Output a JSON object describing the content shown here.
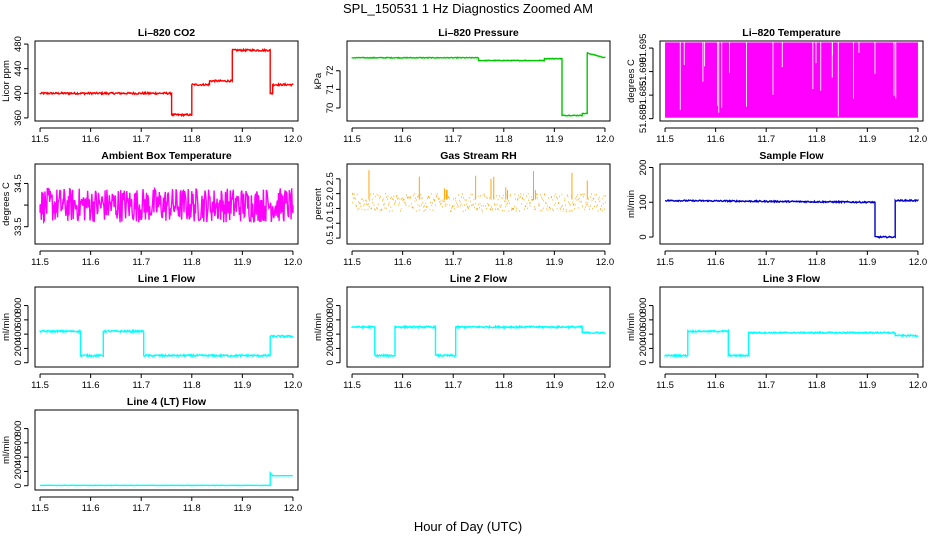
{
  "figure": {
    "title": "SPL_150531  1 Hz Diagnostics Zoomed AM",
    "xlabel": "Hour of Day (UTC)"
  },
  "chart_data": [
    {
      "type": "line",
      "title": "Li–820 CO2",
      "ylabel": "Licor ppm",
      "color": "#ff0000",
      "xlim": [
        11.49,
        12.01
      ],
      "ylim": [
        355,
        485
      ],
      "yticks": [
        360,
        400,
        440,
        480
      ],
      "xticks": [
        11.5,
        11.6,
        11.7,
        11.8,
        11.9,
        12.0
      ],
      "noise": 1.5,
      "series": [
        {
          "x": [
            11.5,
            11.76,
            11.76,
            11.8,
            11.8,
            11.835,
            11.835,
            11.88,
            11.88,
            11.955,
            11.955,
            11.96,
            11.96,
            12.0
          ],
          "y": [
            400,
            400,
            365,
            365,
            414,
            414,
            420,
            420,
            470,
            470,
            400,
            400,
            414,
            414
          ]
        }
      ]
    },
    {
      "type": "line",
      "title": "Li–820 Pressure",
      "ylabel": "kPa",
      "color": "#00c800",
      "xlim": [
        11.49,
        12.01
      ],
      "ylim": [
        69.3,
        73.6
      ],
      "yticks": [
        70,
        71,
        72
      ],
      "ytick_labels": [
        "70",
        "71",
        "72"
      ],
      "xticks": [
        11.5,
        11.6,
        11.7,
        11.8,
        11.9,
        12.0
      ],
      "noise": 0.02,
      "series": [
        {
          "x": [
            11.5,
            11.75,
            11.75,
            11.88,
            11.88,
            11.915,
            11.915,
            11.955,
            11.955,
            11.965,
            11.965,
            12.0
          ],
          "y": [
            72.7,
            72.7,
            72.55,
            72.55,
            72.65,
            72.65,
            69.6,
            69.6,
            69.7,
            69.7,
            72.95,
            72.7
          ]
        }
      ]
    },
    {
      "type": "band",
      "title": "Li–820 Temperature",
      "ylabel": "degrees C",
      "color": "#ff00ff",
      "xlim": [
        11.49,
        12.01
      ],
      "ylim": [
        51.6795,
        51.6965
      ],
      "yticks": [
        51.68,
        51.685,
        51.69,
        51.695
      ],
      "ytick_labels": [
        "51.680",
        "51.685",
        "51.690",
        "51.695"
      ],
      "xticks": [
        11.5,
        11.6,
        11.7,
        11.8,
        11.9,
        12.0
      ],
      "band": [
        51.6802,
        51.6962
      ]
    },
    {
      "type": "line",
      "title": "Ambient Box Temperature",
      "ylabel": "degrees C",
      "color": "#ff00ff",
      "xlim": [
        11.49,
        12.01
      ],
      "ylim": [
        33.1,
        34.95
      ],
      "yticks": [
        33.5,
        34.0,
        34.5
      ],
      "ytick_labels": [
        "33.5",
        "",
        "34.5"
      ],
      "xticks": [
        11.5,
        11.6,
        11.7,
        11.8,
        11.9,
        12.0
      ],
      "noise": 0.4,
      "series": [
        {
          "x": [
            11.5,
            12.0
          ],
          "y": [
            34.0,
            34.0
          ]
        }
      ]
    },
    {
      "type": "scatter",
      "title": "Gas Stream RH",
      "ylabel": "percent",
      "color": "#ffa500",
      "xlim": [
        11.49,
        12.01
      ],
      "ylim": [
        0.3,
        3.0
      ],
      "yticks": [
        0.5,
        1.0,
        1.5,
        2.0,
        2.5
      ],
      "ytick_labels": [
        "0.5",
        "1.0",
        "1.5",
        "2.0",
        "2.5"
      ],
      "xticks": [
        11.5,
        11.6,
        11.7,
        11.8,
        11.9,
        12.0
      ],
      "noise": 0.3,
      "series": [
        {
          "x": [
            11.5,
            12.0
          ],
          "y": [
            1.7,
            1.7
          ]
        }
      ]
    },
    {
      "type": "line",
      "title": "Sample Flow",
      "ylabel": "ml/min",
      "color": "#0000cc",
      "xlim": [
        11.49,
        12.01
      ],
      "ylim": [
        -20,
        210
      ],
      "yticks": [
        0,
        100,
        200
      ],
      "xticks": [
        11.5,
        11.6,
        11.7,
        11.8,
        11.9,
        12.0
      ],
      "noise": 2,
      "series": [
        {
          "x": [
            11.5,
            11.915,
            11.915,
            11.955,
            11.955,
            12.0
          ],
          "y": [
            105,
            100,
            0,
            0,
            105,
            105
          ]
        }
      ]
    },
    {
      "type": "line",
      "title": "Line 1 Flow",
      "ylabel": "ml/min",
      "color": "#00ffff",
      "xlim": [
        11.49,
        12.01
      ],
      "ylim": [
        -60,
        1060
      ],
      "yticks": [
        0,
        200,
        400,
        600,
        800
      ],
      "xticks": [
        11.5,
        11.6,
        11.7,
        11.8,
        11.9,
        12.0
      ],
      "noise": 12,
      "series": [
        {
          "x": [
            11.5,
            11.58,
            11.58,
            11.625,
            11.625,
            11.705,
            11.705,
            11.955,
            11.955,
            12.0
          ],
          "y": [
            440,
            440,
            100,
            100,
            440,
            440,
            100,
            100,
            370,
            370
          ]
        }
      ]
    },
    {
      "type": "line",
      "title": "Line 2 Flow",
      "ylabel": "ml/min",
      "color": "#00ffff",
      "xlim": [
        11.49,
        12.01
      ],
      "ylim": [
        -60,
        1060
      ],
      "yticks": [
        0,
        200,
        400,
        600,
        800
      ],
      "xticks": [
        11.5,
        11.6,
        11.7,
        11.8,
        11.9,
        12.0
      ],
      "noise": 12,
      "series": [
        {
          "x": [
            11.5,
            11.545,
            11.545,
            11.585,
            11.585,
            11.665,
            11.665,
            11.705,
            11.705,
            11.955,
            11.955,
            12.0
          ],
          "y": [
            500,
            500,
            100,
            100,
            500,
            500,
            100,
            100,
            500,
            500,
            420,
            420
          ]
        }
      ]
    },
    {
      "type": "line",
      "title": "Line 3 Flow",
      "ylabel": "ml/min",
      "color": "#00ffff",
      "xlim": [
        11.49,
        12.01
      ],
      "ylim": [
        -60,
        1060
      ],
      "yticks": [
        0,
        200,
        400,
        600,
        800
      ],
      "xticks": [
        11.5,
        11.6,
        11.7,
        11.8,
        11.9,
        12.0
      ],
      "noise": 10,
      "series": [
        {
          "x": [
            11.5,
            11.545,
            11.545,
            11.625,
            11.625,
            11.665,
            11.665,
            11.955,
            11.955,
            12.0
          ],
          "y": [
            100,
            100,
            440,
            440,
            100,
            100,
            420,
            420,
            380,
            380
          ]
        }
      ]
    },
    {
      "type": "line",
      "title": "Line 4 (LT) Flow",
      "ylabel": "ml/min",
      "color": "#00ffff",
      "xlim": [
        11.49,
        12.01
      ],
      "ylim": [
        -60,
        1060
      ],
      "yticks": [
        0,
        200,
        400,
        600,
        800
      ],
      "xticks": [
        11.5,
        11.6,
        11.7,
        11.8,
        11.9,
        12.0
      ],
      "noise": 2,
      "series": [
        {
          "x": [
            11.5,
            11.955,
            11.955,
            11.96,
            12.0
          ],
          "y": [
            5,
            5,
            180,
            140,
            140
          ]
        }
      ]
    }
  ]
}
